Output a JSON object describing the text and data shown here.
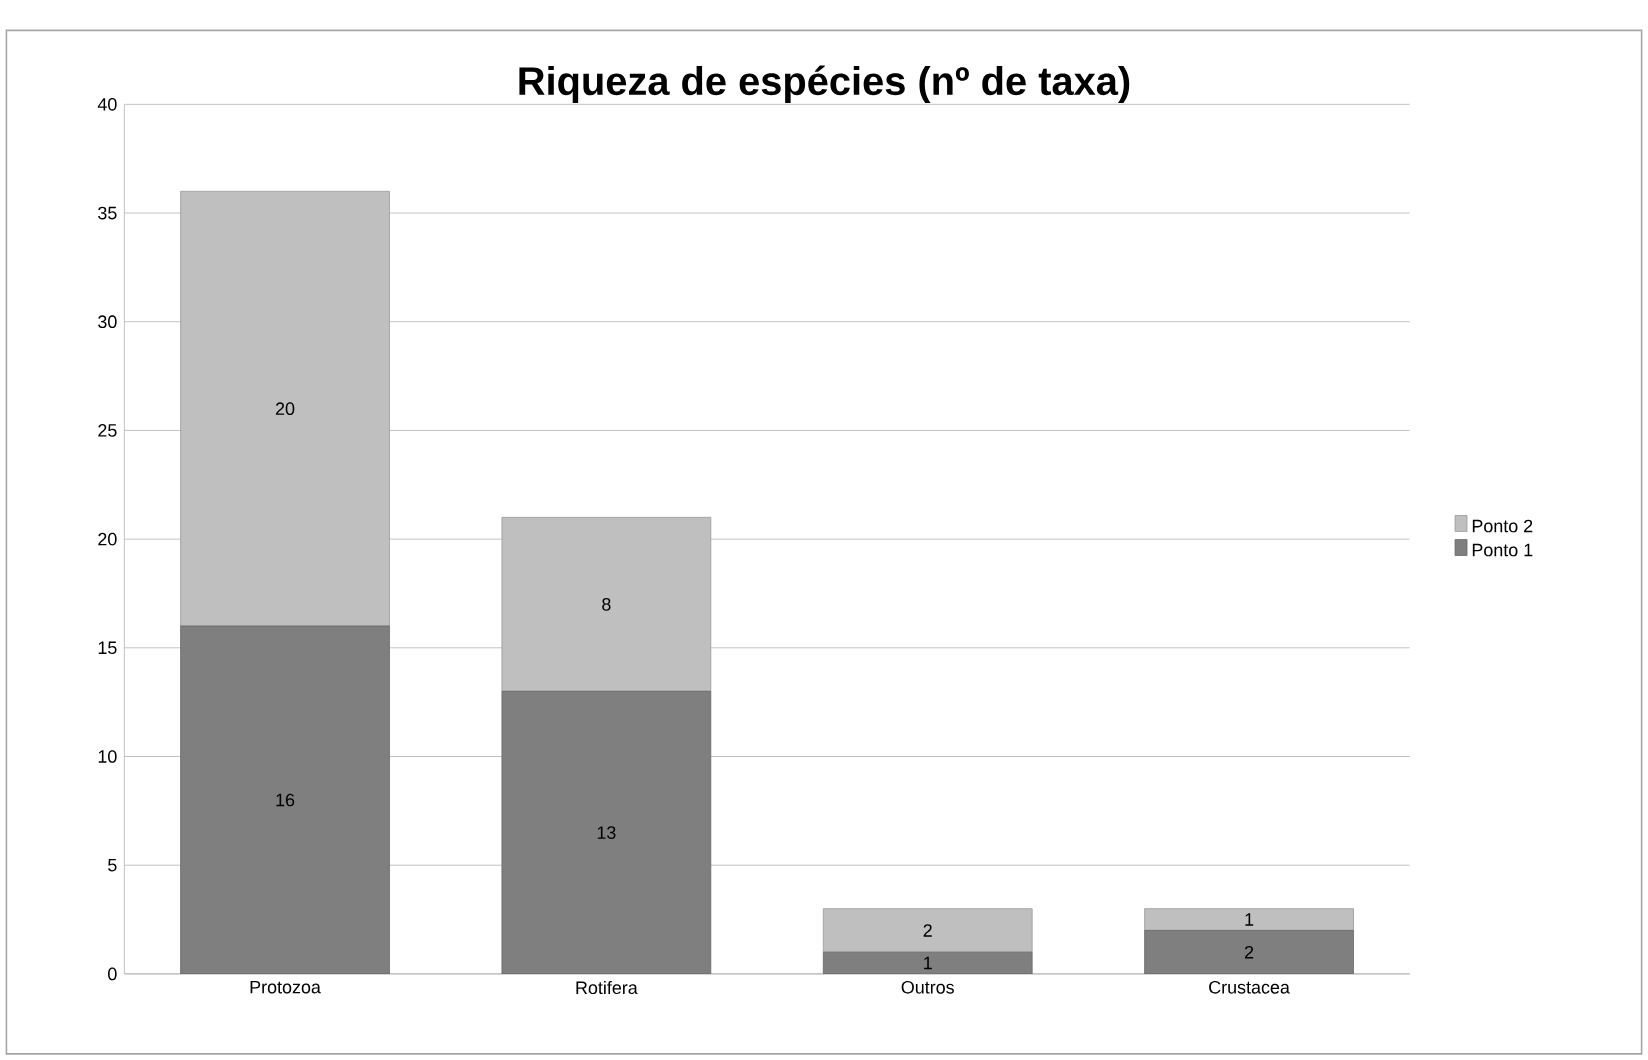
{
  "chart_data": {
    "type": "bar",
    "title": "Riqueza de espécies (nº de taxa)",
    "stacked": true,
    "categories": [
      "Protozoa",
      "Rotifera",
      "Outros",
      "Crustacea"
    ],
    "series": [
      {
        "name": "Ponto 1",
        "color": "#7f7f7f",
        "values": [
          16,
          13,
          1,
          2
        ]
      },
      {
        "name": "Ponto 2",
        "color": "#bfbfbf",
        "values": [
          20,
          8,
          2,
          1
        ]
      }
    ],
    "ylim": [
      0,
      40
    ],
    "yticks": [
      0,
      5,
      10,
      15,
      20,
      25,
      30,
      35,
      40
    ],
    "grid": "y",
    "legend": "right",
    "data_labels": true
  }
}
